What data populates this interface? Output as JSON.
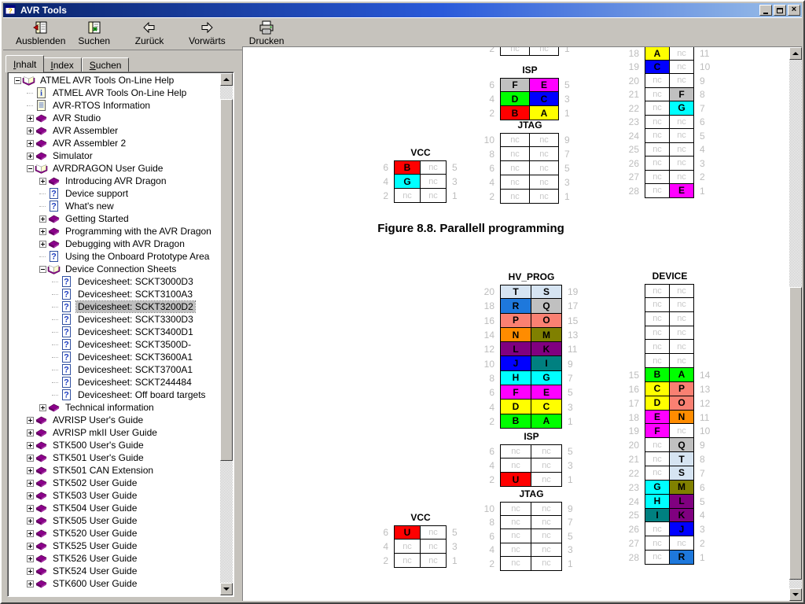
{
  "window": {
    "title": "AVR Tools"
  },
  "toolbar": {
    "buttons": [
      {
        "label": "Ausblenden",
        "icon": "hide-panel-icon"
      },
      {
        "label": "Suchen",
        "icon": "search-panel-icon"
      },
      {
        "label": "Zurück",
        "icon": "back-arrow-icon"
      },
      {
        "label": "Vorwärts",
        "icon": "forward-arrow-icon"
      },
      {
        "label": "Drucken",
        "icon": "printer-icon"
      }
    ]
  },
  "sidebar": {
    "tabs": [
      {
        "label": "Inhalt",
        "active": true
      },
      {
        "label": "Index",
        "active": false
      },
      {
        "label": "Suchen",
        "active": false
      }
    ],
    "tree": [
      {
        "level": 0,
        "icon": "book-open",
        "glyph": "minus",
        "label": "ATMEL AVR Tools On-Line Help"
      },
      {
        "level": 1,
        "icon": "info",
        "glyph": "none",
        "label": "ATMEL AVR Tools On-Line Help"
      },
      {
        "level": 1,
        "icon": "document",
        "glyph": "none",
        "label": "AVR-RTOS Information"
      },
      {
        "level": 1,
        "icon": "book-closed",
        "glyph": "plus",
        "label": "AVR Studio"
      },
      {
        "level": 1,
        "icon": "book-closed",
        "glyph": "plus",
        "label": "AVR Assembler"
      },
      {
        "level": 1,
        "icon": "book-closed",
        "glyph": "plus",
        "label": "AVR Assembler 2"
      },
      {
        "level": 1,
        "icon": "book-closed",
        "glyph": "plus",
        "label": "Simulator"
      },
      {
        "level": 1,
        "icon": "book-open",
        "glyph": "minus",
        "label": "AVRDRAGON User Guide"
      },
      {
        "level": 2,
        "icon": "book-closed",
        "glyph": "plus",
        "label": "Introducing AVR Dragon"
      },
      {
        "level": 2,
        "icon": "question",
        "glyph": "none",
        "label": "Device support"
      },
      {
        "level": 2,
        "icon": "question",
        "glyph": "none",
        "label": "What's new"
      },
      {
        "level": 2,
        "icon": "book-closed",
        "glyph": "plus",
        "label": "Getting Started"
      },
      {
        "level": 2,
        "icon": "book-closed",
        "glyph": "plus",
        "label": "Programming with the AVR Dragon"
      },
      {
        "level": 2,
        "icon": "book-closed",
        "glyph": "plus",
        "label": "Debugging with AVR Dragon"
      },
      {
        "level": 2,
        "icon": "question",
        "glyph": "none",
        "label": "Using the Onboard Prototype Area"
      },
      {
        "level": 2,
        "icon": "book-open",
        "glyph": "minus",
        "label": "Device Connection Sheets"
      },
      {
        "level": 3,
        "icon": "question",
        "glyph": "none",
        "label": "Devicesheet: SCKT3000D3"
      },
      {
        "level": 3,
        "icon": "question",
        "glyph": "none",
        "label": "Devicesheet: SCKT3100A3"
      },
      {
        "level": 3,
        "icon": "question",
        "glyph": "none",
        "label": "Devicesheet: SCKT3200D2",
        "selected": true
      },
      {
        "level": 3,
        "icon": "question",
        "glyph": "none",
        "label": "Devicesheet: SCKT3300D3"
      },
      {
        "level": 3,
        "icon": "question",
        "glyph": "none",
        "label": "Devicesheet: SCKT3400D1"
      },
      {
        "level": 3,
        "icon": "question",
        "glyph": "none",
        "label": "Devicesheet: SCKT3500D-"
      },
      {
        "level": 3,
        "icon": "question",
        "glyph": "none",
        "label": "Devicesheet: SCKT3600A1"
      },
      {
        "level": 3,
        "icon": "question",
        "glyph": "none",
        "label": "Devicesheet: SCKT3700A1"
      },
      {
        "level": 3,
        "icon": "question",
        "glyph": "none",
        "label": "Devicesheet: SCKT244484"
      },
      {
        "level": 3,
        "icon": "question",
        "glyph": "none",
        "label": "Devicesheet: Off board targets"
      },
      {
        "level": 2,
        "icon": "book-closed",
        "glyph": "plus",
        "label": "Technical information"
      },
      {
        "level": 1,
        "icon": "book-closed",
        "glyph": "plus",
        "label": "AVRISP User's Guide"
      },
      {
        "level": 1,
        "icon": "book-closed",
        "glyph": "plus",
        "label": "AVRISP mkII User Guide"
      },
      {
        "level": 1,
        "icon": "book-closed",
        "glyph": "plus",
        "label": "STK500 User's Guide"
      },
      {
        "level": 1,
        "icon": "book-closed",
        "glyph": "plus",
        "label": "STK501 User's Guide"
      },
      {
        "level": 1,
        "icon": "book-closed",
        "glyph": "plus",
        "label": "STK501 CAN Extension"
      },
      {
        "level": 1,
        "icon": "book-closed",
        "glyph": "plus",
        "label": "STK502 User Guide"
      },
      {
        "level": 1,
        "icon": "book-closed",
        "glyph": "plus",
        "label": "STK503 User Guide"
      },
      {
        "level": 1,
        "icon": "book-closed",
        "glyph": "plus",
        "label": "STK504 User Guide"
      },
      {
        "level": 1,
        "icon": "book-closed",
        "glyph": "plus",
        "label": "STK505 User Guide"
      },
      {
        "level": 1,
        "icon": "book-closed",
        "glyph": "plus",
        "label": "STK520 User Guide"
      },
      {
        "level": 1,
        "icon": "book-closed",
        "glyph": "plus",
        "label": "STK525 User Guide"
      },
      {
        "level": 1,
        "icon": "book-closed",
        "glyph": "plus",
        "label": "STK526 User Guide"
      },
      {
        "level": 1,
        "icon": "book-closed",
        "glyph": "plus",
        "label": "STK524 User Guide"
      },
      {
        "level": 1,
        "icon": "book-closed",
        "glyph": "plus",
        "label": "STK600 User Guide"
      }
    ]
  },
  "content": {
    "caption": "Figure 8.8. Parallell programming",
    "palette": {
      "yellow": "#FFFF00",
      "red": "#FF0000",
      "blue": "#0000FF",
      "green": "#00FF00",
      "magenta": "#FF00FF",
      "silver": "#C0C0C0",
      "cyan": "#00FFFF",
      "teal": "#008080",
      "purple": "#800080",
      "olive": "#808000",
      "orange": "#FF8C00",
      "salmon": "#FA8072",
      "dodger": "#1E78DC",
      "ltblue": "#D6E4F2"
    },
    "pin_tables": [
      {
        "id": "partial_top",
        "title": "",
        "rows": [
          [
            "2",
            "nc",
            "",
            "nc",
            "",
            "1"
          ]
        ]
      },
      {
        "id": "isp_top",
        "title": "ISP",
        "rows": [
          [
            "6",
            "F",
            "silver",
            "E",
            "magenta",
            "5"
          ],
          [
            "4",
            "D",
            "green",
            "C",
            "blue",
            "3"
          ],
          [
            "2",
            "B",
            "red",
            "A",
            "yellow",
            "1"
          ]
        ]
      },
      {
        "id": "jtag_top",
        "title": "JTAG",
        "rows": [
          [
            "10",
            "nc",
            "",
            "nc",
            "",
            "9"
          ],
          [
            "8",
            "nc",
            "",
            "nc",
            "",
            "7"
          ],
          [
            "6",
            "nc",
            "",
            "nc",
            "",
            "5"
          ],
          [
            "4",
            "nc",
            "",
            "nc",
            "",
            "3"
          ],
          [
            "2",
            "nc",
            "",
            "nc",
            "",
            "1"
          ]
        ]
      },
      {
        "id": "vcc_top",
        "title": "VCC",
        "rows": [
          [
            "6",
            "B",
            "red",
            "nc",
            "",
            "5"
          ],
          [
            "4",
            "G",
            "cyan",
            "nc",
            "",
            "3"
          ],
          [
            "2",
            "nc",
            "",
            "nc",
            "",
            "1"
          ]
        ]
      },
      {
        "id": "device_top",
        "title": "",
        "rows": [
          [
            "18",
            "A",
            "yellow",
            "nc",
            "",
            "11"
          ],
          [
            "19",
            "C",
            "blue",
            "nc",
            "",
            "10"
          ],
          [
            "20",
            "nc",
            "",
            "nc",
            "",
            "9"
          ],
          [
            "21",
            "nc",
            "",
            "F",
            "silver",
            "8"
          ],
          [
            "22",
            "nc",
            "",
            "G",
            "cyan",
            "7"
          ],
          [
            "23",
            "nc",
            "",
            "nc",
            "",
            "6"
          ],
          [
            "24",
            "nc",
            "",
            "nc",
            "",
            "5"
          ],
          [
            "25",
            "nc",
            "",
            "nc",
            "",
            "4"
          ],
          [
            "26",
            "nc",
            "",
            "nc",
            "",
            "3"
          ],
          [
            "27",
            "nc",
            "",
            "nc",
            "",
            "2"
          ],
          [
            "28",
            "nc",
            "",
            "E",
            "magenta",
            "1"
          ]
        ]
      },
      {
        "id": "hvprog",
        "title": "HV_PROG",
        "rows": [
          [
            "20",
            "T",
            "ltblue",
            "S",
            "ltblue",
            "19"
          ],
          [
            "18",
            "R",
            "dodger",
            "Q",
            "silver",
            "17"
          ],
          [
            "16",
            "P",
            "salmon",
            "O",
            "salmon",
            "15"
          ],
          [
            "14",
            "N",
            "orange",
            "M",
            "olive",
            "13"
          ],
          [
            "12",
            "L",
            "purple",
            "K",
            "purple",
            "11"
          ],
          [
            "10",
            "J",
            "blue",
            "I",
            "teal",
            "9"
          ],
          [
            "8",
            "H",
            "cyan",
            "G",
            "cyan",
            "7"
          ],
          [
            "6",
            "F",
            "magenta",
            "E",
            "magenta",
            "5"
          ],
          [
            "4",
            "D",
            "yellow",
            "C",
            "yellow",
            "3"
          ],
          [
            "2",
            "B",
            "green",
            "A",
            "green",
            "1"
          ]
        ]
      },
      {
        "id": "isp_bottom",
        "title": "ISP",
        "rows": [
          [
            "6",
            "nc",
            "",
            "nc",
            "",
            "5"
          ],
          [
            "4",
            "nc",
            "",
            "nc",
            "",
            "3"
          ],
          [
            "2",
            "U",
            "red",
            "nc",
            "",
            "1"
          ]
        ]
      },
      {
        "id": "jtag_bottom",
        "title": "JTAG",
        "rows": [
          [
            "10",
            "nc",
            "",
            "nc",
            "",
            "9"
          ],
          [
            "8",
            "nc",
            "",
            "nc",
            "",
            "7"
          ],
          [
            "6",
            "nc",
            "",
            "nc",
            "",
            "5"
          ],
          [
            "4",
            "nc",
            "",
            "nc",
            "",
            "3"
          ],
          [
            "2",
            "nc",
            "",
            "nc",
            "",
            "1"
          ]
        ]
      },
      {
        "id": "vcc_bottom",
        "title": "VCC",
        "rows": [
          [
            "6",
            "U",
            "red",
            "nc",
            "",
            "5"
          ],
          [
            "4",
            "nc",
            "",
            "nc",
            "",
            "3"
          ],
          [
            "2",
            "nc",
            "",
            "nc",
            "",
            "1"
          ]
        ]
      },
      {
        "id": "device_bottom",
        "title": "DEVICE",
        "rows": [
          [
            "",
            "nc",
            "",
            "nc",
            "",
            ""
          ],
          [
            "",
            "nc",
            "",
            "nc",
            "",
            ""
          ],
          [
            "",
            "nc",
            "",
            "nc",
            "",
            ""
          ],
          [
            "",
            "nc",
            "",
            "nc",
            "",
            ""
          ],
          [
            "",
            "nc",
            "",
            "nc",
            "",
            ""
          ],
          [
            "",
            "nc",
            "",
            "nc",
            "",
            ""
          ],
          [
            "15",
            "B",
            "green",
            "A",
            "green",
            "14"
          ],
          [
            "16",
            "C",
            "yellow",
            "P",
            "salmon",
            "13"
          ],
          [
            "17",
            "D",
            "yellow",
            "O",
            "salmon",
            "12"
          ],
          [
            "18",
            "E",
            "magenta",
            "N",
            "orange",
            "11"
          ],
          [
            "19",
            "F",
            "magenta",
            "nc",
            "",
            "10"
          ],
          [
            "20",
            "nc",
            "",
            "Q",
            "silver",
            "9"
          ],
          [
            "21",
            "nc",
            "",
            "T",
            "ltblue",
            "8"
          ],
          [
            "22",
            "nc",
            "",
            "S",
            "ltblue",
            "7"
          ],
          [
            "23",
            "G",
            "cyan",
            "M",
            "olive",
            "6"
          ],
          [
            "24",
            "H",
            "cyan",
            "L",
            "purple",
            "5"
          ],
          [
            "25",
            "I",
            "teal",
            "K",
            "purple",
            "4"
          ],
          [
            "26",
            "nc",
            "",
            "J",
            "blue",
            "3"
          ],
          [
            "27",
            "nc",
            "",
            "nc",
            "",
            "2"
          ],
          [
            "28",
            "nc",
            "",
            "R",
            "dodger",
            "1"
          ]
        ]
      }
    ]
  }
}
